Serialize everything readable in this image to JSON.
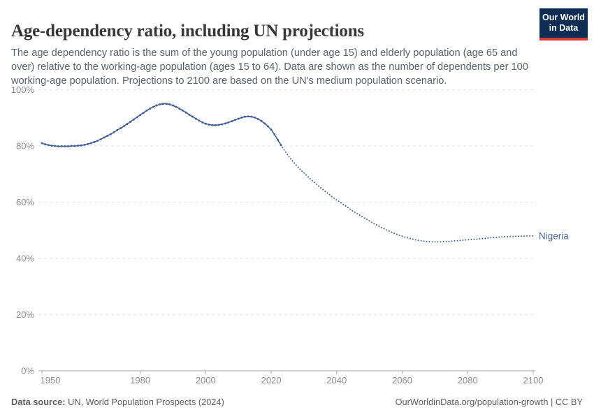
{
  "header": {
    "title": "Age-dependency ratio, including UN projections",
    "subtitle": "The age dependency ratio is the sum of the young population (under age 15) and elderly population (age 65 and over) relative to the working-age population (ages 15 to 64). Data are shown as the number of dependents per 100 working-age population. Projections to 2100 are based on the UN's medium population scenario.",
    "logo": {
      "line1": "Our World",
      "line2": "in Data"
    }
  },
  "chart_data": {
    "type": "line",
    "title": "Age-dependency ratio, including UN projections",
    "entity_label": "Nigeria",
    "unit": "%",
    "x": {
      "range": [
        1950,
        2100
      ],
      "ticks": [
        1950,
        1980,
        2000,
        2020,
        2040,
        2060,
        2080,
        2100
      ]
    },
    "y": {
      "range": [
        0,
        100
      ],
      "ticks": [
        0,
        20,
        40,
        60,
        80,
        100
      ],
      "tick_suffix": "%",
      "grid": true
    },
    "projection_start_year": 2023,
    "legend_position": "end-of-line",
    "series": [
      {
        "name": "Nigeria",
        "points": [
          [
            1950,
            81.0
          ],
          [
            1951,
            80.6
          ],
          [
            1952,
            80.3
          ],
          [
            1953,
            80.1
          ],
          [
            1954,
            80.0
          ],
          [
            1955,
            79.9
          ],
          [
            1956,
            79.9
          ],
          [
            1957,
            79.9
          ],
          [
            1958,
            79.9
          ],
          [
            1959,
            80.0
          ],
          [
            1960,
            80.0
          ],
          [
            1961,
            80.1
          ],
          [
            1962,
            80.2
          ],
          [
            1963,
            80.4
          ],
          [
            1964,
            80.7
          ],
          [
            1965,
            81.0
          ],
          [
            1966,
            81.4
          ],
          [
            1967,
            81.9
          ],
          [
            1968,
            82.4
          ],
          [
            1969,
            83.0
          ],
          [
            1970,
            83.6
          ],
          [
            1971,
            84.2
          ],
          [
            1972,
            84.9
          ],
          [
            1973,
            85.6
          ],
          [
            1974,
            86.3
          ],
          [
            1975,
            87.0
          ],
          [
            1976,
            87.8
          ],
          [
            1977,
            88.6
          ],
          [
            1978,
            89.4
          ],
          [
            1979,
            90.2
          ],
          [
            1980,
            91.0
          ],
          [
            1981,
            91.8
          ],
          [
            1982,
            92.6
          ],
          [
            1983,
            93.3
          ],
          [
            1984,
            93.9
          ],
          [
            1985,
            94.4
          ],
          [
            1986,
            94.8
          ],
          [
            1987,
            95.0
          ],
          [
            1988,
            95.0
          ],
          [
            1989,
            94.8
          ],
          [
            1990,
            94.4
          ],
          [
            1991,
            93.9
          ],
          [
            1992,
            93.3
          ],
          [
            1993,
            92.6
          ],
          [
            1994,
            91.9
          ],
          [
            1995,
            91.1
          ],
          [
            1996,
            90.4
          ],
          [
            1997,
            89.7
          ],
          [
            1998,
            89.0
          ],
          [
            1999,
            88.4
          ],
          [
            2000,
            87.9
          ],
          [
            2001,
            87.6
          ],
          [
            2002,
            87.4
          ],
          [
            2003,
            87.4
          ],
          [
            2004,
            87.5
          ],
          [
            2005,
            87.7
          ],
          [
            2006,
            88.0
          ],
          [
            2007,
            88.4
          ],
          [
            2008,
            88.8
          ],
          [
            2009,
            89.3
          ],
          [
            2010,
            89.7
          ],
          [
            2011,
            90.1
          ],
          [
            2012,
            90.4
          ],
          [
            2013,
            90.5
          ],
          [
            2014,
            90.4
          ],
          [
            2015,
            90.1
          ],
          [
            2016,
            89.6
          ],
          [
            2017,
            88.9
          ],
          [
            2018,
            88.0
          ],
          [
            2019,
            87.0
          ],
          [
            2020,
            85.8
          ],
          [
            2021,
            84.1
          ],
          [
            2022,
            82.2
          ],
          [
            2023,
            80.3
          ],
          [
            2024,
            78.5
          ],
          [
            2025,
            76.9
          ],
          [
            2026,
            75.4
          ],
          [
            2027,
            74.0
          ],
          [
            2028,
            72.7
          ],
          [
            2029,
            71.5
          ],
          [
            2030,
            70.4
          ],
          [
            2031,
            69.3
          ],
          [
            2032,
            68.2
          ],
          [
            2033,
            67.2
          ],
          [
            2034,
            66.2
          ],
          [
            2035,
            65.2
          ],
          [
            2036,
            64.3
          ],
          [
            2037,
            63.4
          ],
          [
            2038,
            62.5
          ],
          [
            2039,
            61.6
          ],
          [
            2040,
            60.8
          ],
          [
            2041,
            60.0
          ],
          [
            2042,
            59.2
          ],
          [
            2043,
            58.4
          ],
          [
            2044,
            57.6
          ],
          [
            2045,
            56.8
          ],
          [
            2046,
            56.1
          ],
          [
            2047,
            55.4
          ],
          [
            2048,
            54.7
          ],
          [
            2049,
            54.0
          ],
          [
            2050,
            53.3
          ],
          [
            2051,
            52.6
          ],
          [
            2052,
            52.0
          ],
          [
            2053,
            51.4
          ],
          [
            2054,
            50.8
          ],
          [
            2055,
            50.2
          ],
          [
            2056,
            49.7
          ],
          [
            2057,
            49.2
          ],
          [
            2058,
            48.7
          ],
          [
            2059,
            48.3
          ],
          [
            2060,
            47.9
          ],
          [
            2061,
            47.5
          ],
          [
            2062,
            47.2
          ],
          [
            2063,
            46.9
          ],
          [
            2064,
            46.6
          ],
          [
            2065,
            46.4
          ],
          [
            2066,
            46.2
          ],
          [
            2067,
            46.1
          ],
          [
            2068,
            46.0
          ],
          [
            2069,
            45.9
          ],
          [
            2070,
            45.9
          ],
          [
            2071,
            45.9
          ],
          [
            2072,
            45.9
          ],
          [
            2073,
            46.0
          ],
          [
            2074,
            46.0
          ],
          [
            2075,
            46.1
          ],
          [
            2076,
            46.2
          ],
          [
            2077,
            46.3
          ],
          [
            2078,
            46.4
          ],
          [
            2079,
            46.5
          ],
          [
            2080,
            46.6
          ],
          [
            2081,
            46.7
          ],
          [
            2082,
            46.8
          ],
          [
            2083,
            46.9
          ],
          [
            2084,
            47.0
          ],
          [
            2085,
            47.1
          ],
          [
            2086,
            47.2
          ],
          [
            2087,
            47.3
          ],
          [
            2088,
            47.4
          ],
          [
            2089,
            47.5
          ],
          [
            2090,
            47.6
          ],
          [
            2091,
            47.7
          ],
          [
            2092,
            47.7
          ],
          [
            2093,
            47.8
          ],
          [
            2094,
            47.8
          ],
          [
            2095,
            47.9
          ],
          [
            2096,
            47.9
          ],
          [
            2097,
            47.9
          ],
          [
            2098,
            48.0
          ],
          [
            2099,
            48.0
          ],
          [
            2100,
            48.0
          ]
        ]
      }
    ]
  },
  "colors": {
    "line": "#3f5e99",
    "entity_label": "#4a69a2",
    "grid": "#e2e2e2",
    "axis": "#a8a8a8",
    "tick_text": "#8c8c8c",
    "logo_bg": "#0d2d55",
    "logo_stripe": "#dc3b31"
  },
  "footer": {
    "source_label": "Data source:",
    "source_text": " UN, World Population Prospects (2024)",
    "right_text": "OurWorldinData.org/population-growth | CC BY"
  }
}
